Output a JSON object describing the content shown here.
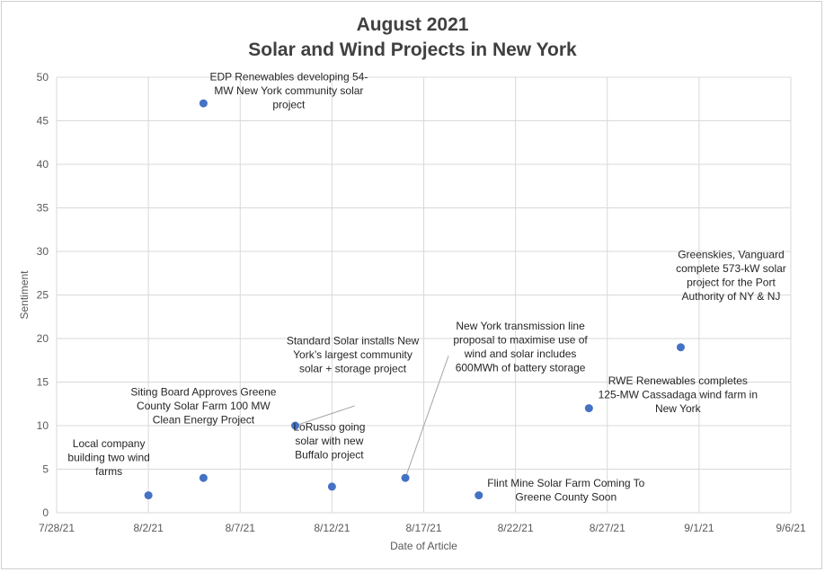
{
  "chart_data": {
    "type": "scatter",
    "title_lines": [
      "August 2021",
      "Solar and Wind Projects in New York"
    ],
    "xlabel": "Date of Article",
    "ylabel": "Sentiment",
    "x_ticks": [
      "7/28/21",
      "8/2/21",
      "8/7/21",
      "8/12/21",
      "8/17/21",
      "8/22/21",
      "8/27/21",
      "9/1/21",
      "9/6/21"
    ],
    "xlim": [
      "7/28/21",
      "9/6/21"
    ],
    "y_ticks": [
      0,
      5,
      10,
      15,
      20,
      25,
      30,
      35,
      40,
      45,
      50
    ],
    "ylim": [
      0,
      50
    ],
    "grid": true,
    "legend": "none",
    "marker_color": "#4472c4",
    "points": [
      {
        "x": "8/2/21",
        "y": 2,
        "label": [
          "Local company",
          "building two wind",
          "farms"
        ]
      },
      {
        "x": "8/5/21",
        "y": 47,
        "label": [
          "EDP Renewables developing 54-",
          "MW New York community solar",
          "project"
        ]
      },
      {
        "x": "8/5/21",
        "y": 4,
        "label": [
          "Siting Board Approves Greene",
          "County Solar Farm 100 MW",
          "Clean Energy Project"
        ]
      },
      {
        "x": "8/10/21",
        "y": 10,
        "label": [
          "Standard Solar installs New",
          "York’s largest community",
          "solar + storage project"
        ]
      },
      {
        "x": "8/12/21",
        "y": 3,
        "label": [
          "LoRusso going",
          "solar with new",
          "Buffalo project"
        ]
      },
      {
        "x": "8/16/21",
        "y": 4,
        "label": [
          "New York transmission line",
          "proposal to maximise use of",
          "wind and solar includes",
          "600MWh of battery storage"
        ]
      },
      {
        "x": "8/20/21",
        "y": 2,
        "label": [
          "Flint Mine Solar Farm Coming To",
          "Greene County Soon"
        ]
      },
      {
        "x": "8/26/21",
        "y": 12,
        "label": [
          "RWE Renewables completes",
          "125-MW Cassadaga wind farm in",
          "New York"
        ]
      },
      {
        "x": "8/31/21",
        "y": 19,
        "label": [
          "Greenskies, Vanguard",
          "complete 573-kW solar",
          "project for the Port",
          "Authority of NY & NJ"
        ]
      }
    ]
  }
}
